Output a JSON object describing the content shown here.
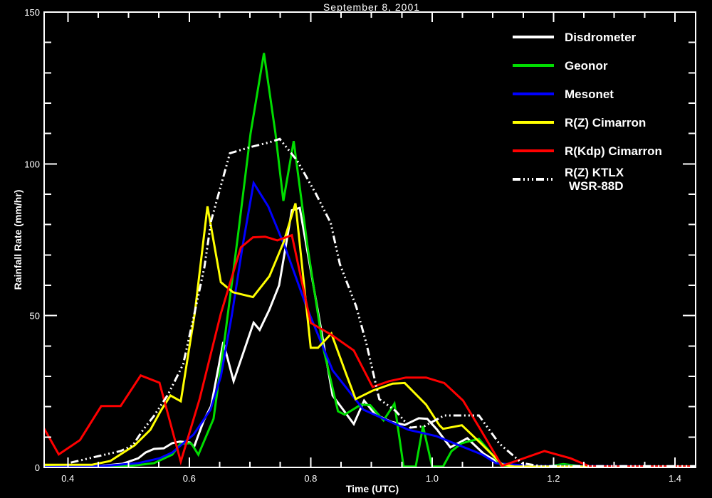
{
  "chart_data": {
    "type": "line",
    "title": "September 8, 2001",
    "xlabel": "Time (UTC)",
    "ylabel": "Rainfall Rate (mm/hr)",
    "xlim": [
      0.361,
      1.434
    ],
    "ylim": [
      0,
      150
    ],
    "grid": false,
    "background": "#000000",
    "axis_color": "#ffffff",
    "x_ticks": {
      "major": [
        0.4,
        0.6,
        0.8,
        1.0,
        1.2,
        1.4
      ],
      "labels": [
        "0.4",
        "0.6",
        "0.8",
        "1.0",
        "1.2",
        "1.4"
      ],
      "minor_step": 0.05
    },
    "y_ticks": {
      "major": [
        0,
        50,
        100,
        150
      ],
      "labels": [
        "0",
        "50",
        "100",
        "150"
      ],
      "minor_step": 10
    },
    "series": [
      {
        "name": "Disdrometer",
        "color": "#ffffff",
        "style": "solid",
        "points": [
          [
            0.361,
            0.3
          ],
          [
            0.45,
            0.4
          ],
          [
            0.49,
            1.2
          ],
          [
            0.516,
            3
          ],
          [
            0.528,
            4.9
          ],
          [
            0.542,
            6.1
          ],
          [
            0.558,
            6.3
          ],
          [
            0.572,
            8
          ],
          [
            0.585,
            8.5
          ],
          [
            0.601,
            8.2
          ],
          [
            0.608,
            6.8
          ],
          [
            0.624,
            15.5
          ],
          [
            0.636,
            20.2
          ],
          [
            0.656,
            41.3
          ],
          [
            0.673,
            28.4
          ],
          [
            0.706,
            47.7
          ],
          [
            0.716,
            45.3
          ],
          [
            0.732,
            52
          ],
          [
            0.748,
            60
          ],
          [
            0.769,
            84.7
          ],
          [
            0.782,
            85.5
          ],
          [
            0.8,
            65
          ],
          [
            0.815,
            48
          ],
          [
            0.836,
            23.7
          ],
          [
            0.871,
            14.3
          ],
          [
            0.888,
            22
          ],
          [
            0.906,
            17.5
          ],
          [
            0.933,
            15
          ],
          [
            0.955,
            14
          ],
          [
            0.978,
            16.2
          ],
          [
            0.992,
            16
          ],
          [
            1.008,
            12.5
          ],
          [
            1.03,
            6.6
          ],
          [
            1.058,
            9.6
          ],
          [
            1.085,
            4.5
          ],
          [
            1.115,
            0.9
          ],
          [
            1.15,
            0.3
          ],
          [
            1.434,
            0.3
          ]
        ]
      },
      {
        "name": "Geonor",
        "color": "#00dd00",
        "style": "solid",
        "points": [
          [
            0.361,
            0.2
          ],
          [
            0.47,
            0.2
          ],
          [
            0.502,
            0.5
          ],
          [
            0.516,
            0.8
          ],
          [
            0.542,
            1.4
          ],
          [
            0.572,
            4.2
          ],
          [
            0.585,
            7.7
          ],
          [
            0.603,
            8
          ],
          [
            0.615,
            4.2
          ],
          [
            0.64,
            16
          ],
          [
            0.66,
            45
          ],
          [
            0.68,
            76
          ],
          [
            0.701,
            110
          ],
          [
            0.723,
            136.5
          ],
          [
            0.742,
            110
          ],
          [
            0.755,
            87.8
          ],
          [
            0.772,
            107.5
          ],
          [
            0.795,
            72.5
          ],
          [
            0.82,
            40
          ],
          [
            0.845,
            18.5
          ],
          [
            0.856,
            17.4
          ],
          [
            0.883,
            20.7
          ],
          [
            0.898,
            20.5
          ],
          [
            0.92,
            15.5
          ],
          [
            0.938,
            21
          ],
          [
            0.953,
            0.3
          ],
          [
            0.973,
            0.3
          ],
          [
            0.985,
            13.6
          ],
          [
            1.0,
            0.3
          ],
          [
            1.018,
            0.3
          ],
          [
            1.032,
            5.4
          ],
          [
            1.049,
            8
          ],
          [
            1.077,
            9.4
          ],
          [
            1.1,
            4
          ],
          [
            1.115,
            0.3
          ],
          [
            1.19,
            0.3
          ],
          [
            1.216,
            1.1
          ],
          [
            1.25,
            0.3
          ],
          [
            1.434,
            0.3
          ]
        ]
      },
      {
        "name": "Mesonet",
        "color": "#0000ff",
        "style": "solid",
        "points": [
          [
            0.361,
            0.1
          ],
          [
            0.46,
            0.5
          ],
          [
            0.516,
            1.4
          ],
          [
            0.551,
            3
          ],
          [
            0.572,
            4.9
          ],
          [
            0.607,
            10.8
          ],
          [
            0.635,
            19
          ],
          [
            0.652,
            30
          ],
          [
            0.67,
            50
          ],
          [
            0.688,
            73
          ],
          [
            0.706,
            93.7
          ],
          [
            0.73,
            86
          ],
          [
            0.758,
            72.5
          ],
          [
            0.793,
            53
          ],
          [
            0.836,
            32
          ],
          [
            0.887,
            19
          ],
          [
            0.961,
            12.4
          ],
          [
            1.007,
            10.3
          ],
          [
            1.083,
            4.2
          ],
          [
            1.105,
            1.4
          ],
          [
            1.16,
            0.5
          ],
          [
            1.434,
            0.3
          ]
        ]
      },
      {
        "name": "R(Z) Cimarron",
        "color": "#ffff00",
        "style": "solid",
        "points": [
          [
            0.361,
            0.9
          ],
          [
            0.44,
            0.9
          ],
          [
            0.47,
            2.1
          ],
          [
            0.51,
            7.3
          ],
          [
            0.536,
            12.4
          ],
          [
            0.553,
            18.6
          ],
          [
            0.569,
            23.7
          ],
          [
            0.586,
            21.8
          ],
          [
            0.609,
            50.7
          ],
          [
            0.63,
            86
          ],
          [
            0.652,
            61
          ],
          [
            0.672,
            57.7
          ],
          [
            0.705,
            56.1
          ],
          [
            0.732,
            63
          ],
          [
            0.755,
            74
          ],
          [
            0.775,
            87
          ],
          [
            0.8,
            39.4
          ],
          [
            0.812,
            39.4
          ],
          [
            0.834,
            44.1
          ],
          [
            0.858,
            31
          ],
          [
            0.874,
            22.5
          ],
          [
            0.902,
            25.3
          ],
          [
            0.935,
            27.6
          ],
          [
            0.955,
            27.8
          ],
          [
            0.99,
            20.7
          ],
          [
            1.012,
            13.9
          ],
          [
            1.018,
            12.7
          ],
          [
            1.049,
            13.9
          ],
          [
            1.08,
            8
          ],
          [
            1.115,
            1
          ],
          [
            1.135,
            0.3
          ],
          [
            1.434,
            0.3
          ]
        ]
      },
      {
        "name": "R(Kdp) Cimarron",
        "color": "#ff0000",
        "style": "solid",
        "points": [
          [
            0.361,
            12.8
          ],
          [
            0.385,
            4.3
          ],
          [
            0.42,
            9
          ],
          [
            0.455,
            20.2
          ],
          [
            0.487,
            20.2
          ],
          [
            0.52,
            30.3
          ],
          [
            0.551,
            27.9
          ],
          [
            0.586,
            1.9
          ],
          [
            0.617,
            22.5
          ],
          [
            0.652,
            50.7
          ],
          [
            0.685,
            72.5
          ],
          [
            0.705,
            75.8
          ],
          [
            0.725,
            76
          ],
          [
            0.745,
            74.8
          ],
          [
            0.769,
            76.5
          ],
          [
            0.8,
            47.6
          ],
          [
            0.834,
            43.7
          ],
          [
            0.871,
            38.5
          ],
          [
            0.902,
            26.5
          ],
          [
            0.929,
            28.4
          ],
          [
            0.957,
            29.6
          ],
          [
            0.99,
            29.6
          ],
          [
            1.02,
            27.8
          ],
          [
            1.051,
            22
          ],
          [
            1.08,
            12.4
          ],
          [
            1.115,
            0.5
          ],
          [
            1.185,
            5.4
          ],
          [
            1.228,
            3
          ],
          [
            1.26,
            0.3
          ],
          [
            1.434,
            0.3
          ]
        ]
      },
      {
        "name": "R(Z) KTLX WSR-88D",
        "color": "#ffffff",
        "style": "dash-dot-dot-dot",
        "points": [
          [
            0.405,
            1.6
          ],
          [
            0.452,
            3.8
          ],
          [
            0.487,
            5.4
          ],
          [
            0.507,
            7.3
          ],
          [
            0.524,
            12.4
          ],
          [
            0.542,
            17
          ],
          [
            0.565,
            24
          ],
          [
            0.59,
            34
          ],
          [
            0.61,
            52
          ],
          [
            0.625,
            66
          ],
          [
            0.636,
            81.2
          ],
          [
            0.667,
            103.5
          ],
          [
            0.7,
            105.5
          ],
          [
            0.73,
            107
          ],
          [
            0.749,
            108.2
          ],
          [
            0.778,
            101
          ],
          [
            0.809,
            90
          ],
          [
            0.833,
            80.5
          ],
          [
            0.848,
            67
          ],
          [
            0.875,
            53
          ],
          [
            0.892,
            40.6
          ],
          [
            0.913,
            22.5
          ],
          [
            0.94,
            18.6
          ],
          [
            0.964,
            13.1
          ],
          [
            0.987,
            13.6
          ],
          [
            1.02,
            17.1
          ],
          [
            1.077,
            17.1
          ],
          [
            1.11,
            8
          ],
          [
            1.148,
            1.4
          ],
          [
            1.18,
            0.4
          ],
          [
            1.434,
            0.4
          ]
        ]
      }
    ],
    "legend": {
      "position": "upper-right",
      "entries": [
        {
          "series": 0,
          "label_lines": [
            "Disdrometer"
          ]
        },
        {
          "series": 1,
          "label_lines": [
            "Geonor"
          ]
        },
        {
          "series": 2,
          "label_lines": [
            "Mesonet"
          ]
        },
        {
          "series": 3,
          "label_lines": [
            "R(Z) Cimarron"
          ]
        },
        {
          "series": 4,
          "label_lines": [
            "R(Kdp) Cimarron"
          ]
        },
        {
          "series": 5,
          "label_lines": [
            "R(Z) KTLX",
            "WSR-88D"
          ]
        }
      ]
    }
  }
}
